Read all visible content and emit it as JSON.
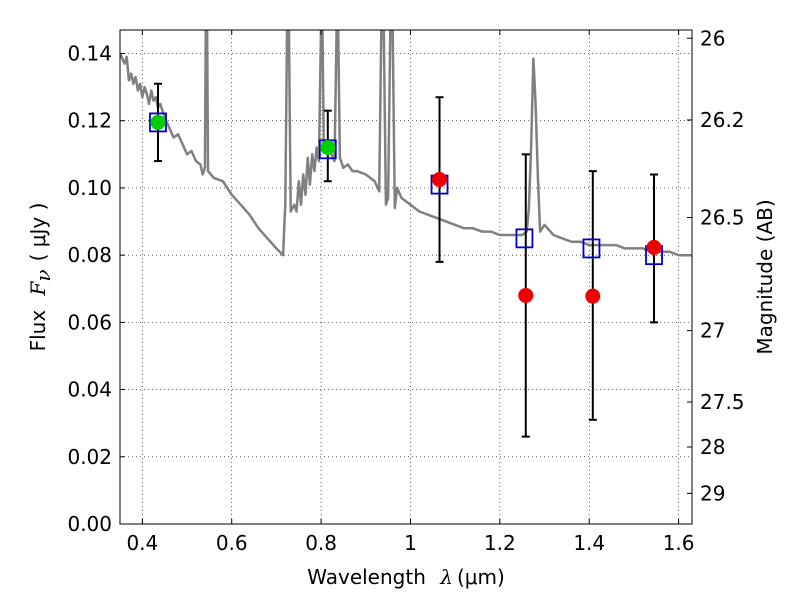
{
  "chart_data": {
    "type": "scatter",
    "title": "",
    "xlabel_text": "Wavelength",
    "xlabel_math": "λ",
    "xlabel_unit": "(μm)",
    "ylabel_text": "Flux",
    "ylabel_math": "F",
    "ylabel_sub": "ν",
    "ylabel_unit": "( μJy )",
    "y2label": "Magnitude (AB)",
    "xlim": [
      0.35,
      1.63
    ],
    "ylim": [
      0.0,
      0.147
    ],
    "grid": true,
    "grid_style": "dotted",
    "x_ticks": [
      0.4,
      0.6,
      0.8,
      1.0,
      1.2,
      1.4,
      1.6
    ],
    "x_tick_labels": [
      "0.4",
      "0.6",
      "0.8",
      "1",
      "1.2",
      "1.4",
      "1.6"
    ],
    "y_ticks": [
      0.0,
      0.02,
      0.04,
      0.06,
      0.08,
      0.1,
      0.12,
      0.14
    ],
    "y_tick_labels": [
      "0.00",
      "0.02",
      "0.04",
      "0.06",
      "0.08",
      "0.10",
      "0.12",
      "0.14"
    ],
    "y2_ticks": [
      {
        "label": "26",
        "mag": 26.0
      },
      {
        "label": "26.2",
        "mag": 26.2
      },
      {
        "label": "26.5",
        "mag": 26.5
      },
      {
        "label": "27",
        "mag": 27.0
      },
      {
        "label": "27.5",
        "mag": 27.5
      },
      {
        "label": "28",
        "mag": 28.0
      },
      {
        "label": "29",
        "mag": 29.0
      }
    ],
    "series": [
      {
        "kind": "line",
        "color": "#808080",
        "points": [
          [
            0.35,
            0.14
          ],
          [
            0.36,
            0.137
          ],
          [
            0.365,
            0.139
          ],
          [
            0.37,
            0.132
          ],
          [
            0.375,
            0.134
          ],
          [
            0.38,
            0.131
          ],
          [
            0.385,
            0.133
          ],
          [
            0.39,
            0.129
          ],
          [
            0.395,
            0.131
          ],
          [
            0.4,
            0.127
          ],
          [
            0.405,
            0.13
          ],
          [
            0.41,
            0.128
          ],
          [
            0.415,
            0.125
          ],
          [
            0.42,
            0.129
          ],
          [
            0.425,
            0.126
          ],
          [
            0.43,
            0.127
          ],
          [
            0.435,
            0.124
          ],
          [
            0.44,
            0.125
          ],
          [
            0.45,
            0.121
          ],
          [
            0.46,
            0.118
          ],
          [
            0.47,
            0.115
          ],
          [
            0.48,
            0.116
          ],
          [
            0.49,
            0.113
          ],
          [
            0.5,
            0.11
          ],
          [
            0.51,
            0.111
          ],
          [
            0.52,
            0.108
          ],
          [
            0.53,
            0.107
          ],
          [
            0.535,
            0.104
          ],
          [
            0.54,
            0.106
          ],
          [
            0.542,
            0.149
          ],
          [
            0.545,
            0.149
          ],
          [
            0.547,
            0.105
          ],
          [
            0.56,
            0.103
          ],
          [
            0.58,
            0.102
          ],
          [
            0.6,
            0.098
          ],
          [
            0.62,
            0.095
          ],
          [
            0.64,
            0.092
          ],
          [
            0.66,
            0.088
          ],
          [
            0.68,
            0.085
          ],
          [
            0.7,
            0.082
          ],
          [
            0.715,
            0.08
          ],
          [
            0.718,
            0.09
          ],
          [
            0.72,
            0.095
          ],
          [
            0.724,
            0.149
          ],
          [
            0.728,
            0.149
          ],
          [
            0.732,
            0.093
          ],
          [
            0.74,
            0.095
          ],
          [
            0.745,
            0.093
          ],
          [
            0.75,
            0.102
          ],
          [
            0.755,
            0.095
          ],
          [
            0.76,
            0.104
          ],
          [
            0.765,
            0.098
          ],
          [
            0.77,
            0.109
          ],
          [
            0.775,
            0.101
          ],
          [
            0.78,
            0.11
          ],
          [
            0.785,
            0.105
          ],
          [
            0.79,
            0.112
          ],
          [
            0.795,
            0.108
          ],
          [
            0.8,
            0.149
          ],
          [
            0.803,
            0.149
          ],
          [
            0.806,
            0.112
          ],
          [
            0.81,
            0.112
          ],
          [
            0.82,
            0.111
          ],
          [
            0.83,
            0.108
          ],
          [
            0.835,
            0.149
          ],
          [
            0.838,
            0.149
          ],
          [
            0.842,
            0.109
          ],
          [
            0.85,
            0.106
          ],
          [
            0.86,
            0.107
          ],
          [
            0.87,
            0.105
          ],
          [
            0.88,
            0.105
          ],
          [
            0.9,
            0.104
          ],
          [
            0.92,
            0.102
          ],
          [
            0.93,
            0.099
          ],
          [
            0.935,
            0.149
          ],
          [
            0.94,
            0.149
          ],
          [
            0.945,
            0.095
          ],
          [
            0.95,
            0.097
          ],
          [
            0.955,
            0.149
          ],
          [
            0.96,
            0.149
          ],
          [
            0.965,
            0.094
          ],
          [
            0.97,
            0.1
          ],
          [
            0.98,
            0.097
          ],
          [
            1.0,
            0.095
          ],
          [
            1.02,
            0.093
          ],
          [
            1.04,
            0.092
          ],
          [
            1.06,
            0.091
          ],
          [
            1.08,
            0.09
          ],
          [
            1.1,
            0.089
          ],
          [
            1.12,
            0.088
          ],
          [
            1.14,
            0.088
          ],
          [
            1.16,
            0.087
          ],
          [
            1.18,
            0.087
          ],
          [
            1.2,
            0.086
          ],
          [
            1.22,
            0.086
          ],
          [
            1.24,
            0.086
          ],
          [
            1.25,
            0.086
          ],
          [
            1.26,
            0.087
          ],
          [
            1.265,
            0.094
          ],
          [
            1.27,
            0.112
          ],
          [
            1.275,
            0.1385
          ],
          [
            1.28,
            0.125
          ],
          [
            1.285,
            0.104
          ],
          [
            1.29,
            0.087
          ],
          [
            1.3,
            0.089
          ],
          [
            1.32,
            0.086
          ],
          [
            1.34,
            0.085
          ],
          [
            1.36,
            0.084
          ],
          [
            1.38,
            0.084
          ],
          [
            1.4,
            0.083
          ],
          [
            1.42,
            0.083
          ],
          [
            1.44,
            0.083
          ],
          [
            1.46,
            0.083
          ],
          [
            1.48,
            0.082
          ],
          [
            1.5,
            0.082
          ],
          [
            1.52,
            0.082
          ],
          [
            1.54,
            0.081
          ],
          [
            1.56,
            0.081
          ],
          [
            1.58,
            0.081
          ],
          [
            1.6,
            0.08
          ],
          [
            1.63,
            0.08
          ]
        ]
      },
      {
        "kind": "open-square",
        "color": "#0000cc",
        "points": [
          {
            "x": 0.435,
            "y": 0.1195
          },
          {
            "x": 0.815,
            "y": 0.1115
          },
          {
            "x": 1.065,
            "y": 0.101
          },
          {
            "x": 1.255,
            "y": 0.085
          },
          {
            "x": 1.405,
            "y": 0.082
          },
          {
            "x": 1.545,
            "y": 0.08
          }
        ]
      },
      {
        "kind": "filled-circle",
        "color": "#00cc00",
        "points": [
          {
            "x": 0.435,
            "y": 0.1195
          },
          {
            "x": 0.815,
            "y": 0.112
          }
        ]
      },
      {
        "kind": "filled-circle",
        "color": "#ee0000",
        "points": [
          {
            "x": 1.065,
            "y": 0.1025
          },
          {
            "x": 1.258,
            "y": 0.068
          },
          {
            "x": 1.408,
            "y": 0.0678
          },
          {
            "x": 1.545,
            "y": 0.0823
          }
        ]
      }
    ],
    "error_bars": [
      {
        "x": 0.435,
        "low": 0.108,
        "high": 0.131
      },
      {
        "x": 0.815,
        "low": 0.102,
        "high": 0.123
      },
      {
        "x": 1.065,
        "low": 0.078,
        "high": 0.127
      },
      {
        "x": 1.258,
        "low": 0.026,
        "high": 0.11
      },
      {
        "x": 1.408,
        "low": 0.031,
        "high": 0.105
      },
      {
        "x": 1.545,
        "low": 0.06,
        "high": 0.104
      }
    ]
  }
}
